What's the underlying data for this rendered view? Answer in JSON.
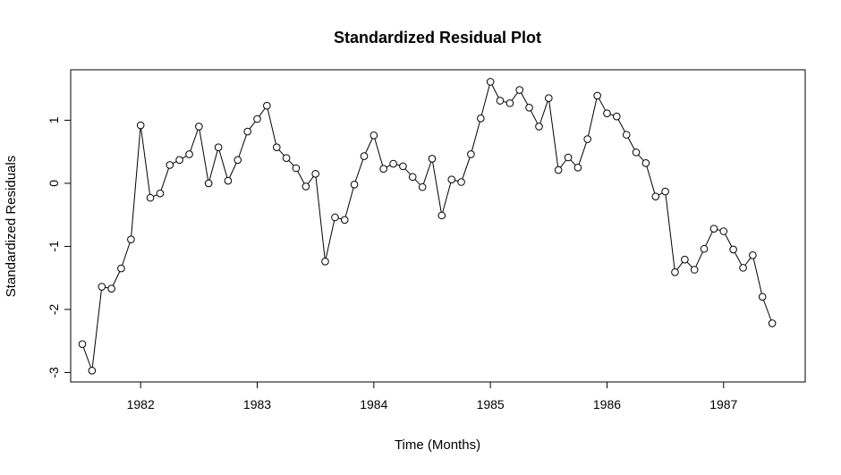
{
  "chart_data": {
    "type": "line",
    "title": "Standardized Residual Plot",
    "xlabel": "Time (Months)",
    "ylabel": "Standardized Residuals",
    "xlim": [
      1981.4,
      1987.7
    ],
    "ylim": [
      -3.15,
      1.8
    ],
    "x_ticks": [
      1982,
      1983,
      1984,
      1985,
      1986,
      1987
    ],
    "x_tick_labels": [
      "1982",
      "1983",
      "1984",
      "1985",
      "1986",
      "1987"
    ],
    "y_ticks": [
      -3,
      -2,
      -1,
      0,
      1
    ],
    "y_tick_labels": [
      "-3",
      "-2",
      "-1",
      "0",
      "1"
    ],
    "grid": false,
    "markers": "open-circle",
    "line_color": "#000000",
    "series": [
      {
        "x": [
          1981.5,
          1981.583,
          1981.667,
          1981.75,
          1981.833,
          1981.917,
          1982.0,
          1982.083,
          1982.167,
          1982.25,
          1982.333,
          1982.417,
          1982.5,
          1982.583,
          1982.667,
          1982.75,
          1982.833,
          1982.917,
          1983.0,
          1983.083,
          1983.167,
          1983.25,
          1983.333,
          1983.417,
          1983.5,
          1983.583,
          1983.667,
          1983.75,
          1983.833,
          1983.917,
          1984.0,
          1984.083,
          1984.167,
          1984.25,
          1984.333,
          1984.417,
          1984.5,
          1984.583,
          1984.667,
          1984.75,
          1984.833,
          1984.917,
          1985.0,
          1985.083,
          1985.167,
          1985.25,
          1985.333,
          1985.417,
          1985.5,
          1985.583,
          1985.667,
          1985.75,
          1985.833,
          1985.917,
          1986.0,
          1986.083,
          1986.167,
          1986.25,
          1986.333,
          1986.417,
          1986.5,
          1986.583,
          1986.667,
          1986.75,
          1986.833,
          1986.917,
          1987.0,
          1987.083,
          1987.167,
          1987.25,
          1987.333,
          1987.417
        ],
        "y": [
          -2.55,
          -2.97,
          -1.64,
          -1.67,
          -1.35,
          -0.89,
          0.92,
          -0.23,
          -0.16,
          0.29,
          0.37,
          0.46,
          0.9,
          0.0,
          0.57,
          0.04,
          0.37,
          0.82,
          1.02,
          1.23,
          0.57,
          0.4,
          0.24,
          -0.05,
          0.15,
          -1.24,
          -0.54,
          -0.58,
          -0.02,
          0.43,
          0.76,
          0.23,
          0.31,
          0.27,
          0.1,
          -0.06,
          0.39,
          -0.51,
          0.06,
          0.02,
          0.46,
          1.03,
          1.61,
          1.31,
          1.27,
          1.48,
          1.2,
          0.9,
          1.35,
          0.21,
          0.41,
          0.25,
          0.7,
          1.39,
          1.11,
          1.06,
          0.77,
          0.49,
          0.32,
          -0.21,
          -0.13,
          -1.41,
          -1.21,
          -1.37,
          -1.04,
          -0.72,
          -0.76,
          -1.05,
          -1.34,
          -1.14,
          -1.8,
          -2.22
        ]
      }
    ]
  }
}
